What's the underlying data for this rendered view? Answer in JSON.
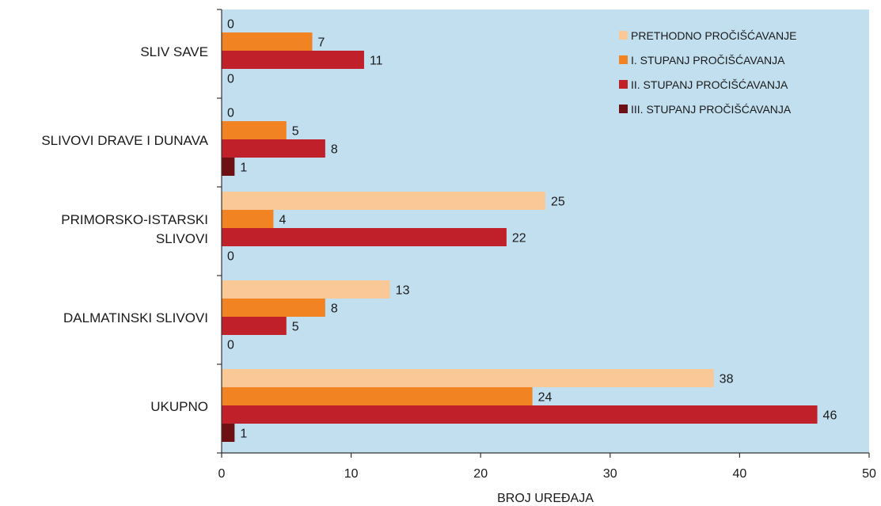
{
  "chart_data": {
    "type": "bar",
    "orientation": "horizontal",
    "categories": [
      "SLIV SAVE",
      "SLIVOVI DRAVE I DUNAVA",
      "PRIMORSKO-ISTARSKI SLIVOVI",
      "DALMATINSKI SLIVOVI",
      "UKUPNO"
    ],
    "category_lines": [
      [
        "SLIV SAVE"
      ],
      [
        "SLIVOVI DRAVE I DUNAVA"
      ],
      [
        "PRIMORSKO-ISTARSKI",
        "SLIVOVI"
      ],
      [
        "DALMATINSKI SLIVOVI"
      ],
      [
        "UKUPNO"
      ]
    ],
    "series": [
      {
        "name": "PRETHODNO PROČIŠĆAVANJE",
        "color": "#f9c896",
        "values": [
          0,
          0,
          25,
          13,
          38
        ]
      },
      {
        "name": "I. STUPANJ PROČIŠĆAVANJA",
        "color": "#f28323",
        "values": [
          7,
          5,
          4,
          8,
          24
        ]
      },
      {
        "name": "II. STUPANJ PROČIŠĆAVANJA",
        "color": "#c0202a",
        "values": [
          11,
          8,
          22,
          5,
          46
        ]
      },
      {
        "name": "III. STUPANJ PROČIŠĆAVANJA",
        "color": "#6e0f14",
        "values": [
          0,
          1,
          0,
          0,
          1
        ]
      }
    ],
    "xlabel": "BROJ UREĐAJA",
    "xlim": [
      0,
      50
    ],
    "xticks": [
      0,
      10,
      20,
      30,
      40,
      50
    ],
    "plot_background": "#c2dff0",
    "grid": false,
    "legend_position": "top-right"
  }
}
